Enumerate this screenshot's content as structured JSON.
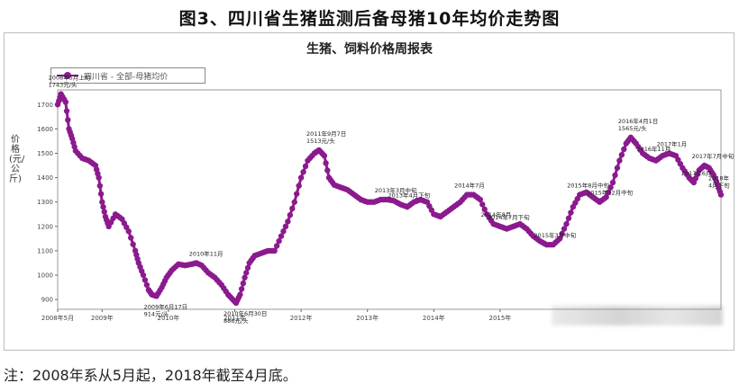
{
  "figure_title": "图3、四川省生猪监测后备母猪10年均价走势图",
  "note": "注：2008年系从5月起，2018年截至4月底。",
  "chart_data": {
    "type": "line",
    "title": "生猪、饲料价格周报表",
    "ylabel": "价格(元/公斤)",
    "xlabel": "",
    "series_name": "四川省 - 全部-母猪均价",
    "series_color": "#8b1a8e",
    "grid": false,
    "legend_position": "top-left",
    "ylim": [
      860,
      1760
    ],
    "yticks": [
      900,
      1000,
      1100,
      1200,
      1300,
      1400,
      1500,
      1600,
      1700
    ],
    "xlim": [
      2008.33,
      2018.33
    ],
    "xticks": [
      {
        "x": 2008.33,
        "label": "2008年5月"
      },
      {
        "x": 2009.0,
        "label": "2009年"
      },
      {
        "x": 2010.0,
        "label": "2010年"
      },
      {
        "x": 2011.0,
        "label": "2011年"
      },
      {
        "x": 2012.0,
        "label": "2012年"
      },
      {
        "x": 2013.0,
        "label": "2013年"
      },
      {
        "x": 2014.0,
        "label": "2014年"
      },
      {
        "x": 2015.0,
        "label": "2015年"
      }
    ],
    "points": [
      [
        2008.33,
        1700
      ],
      [
        2008.38,
        1743
      ],
      [
        2008.45,
        1710
      ],
      [
        2008.5,
        1600
      ],
      [
        2008.55,
        1560
      ],
      [
        2008.6,
        1510
      ],
      [
        2008.7,
        1480
      ],
      [
        2008.8,
        1470
      ],
      [
        2008.9,
        1450
      ],
      [
        2008.95,
        1400
      ],
      [
        2009.0,
        1300
      ],
      [
        2009.05,
        1240
      ],
      [
        2009.1,
        1200
      ],
      [
        2009.2,
        1250
      ],
      [
        2009.3,
        1230
      ],
      [
        2009.4,
        1180
      ],
      [
        2009.5,
        1100
      ],
      [
        2009.55,
        1050
      ],
      [
        2009.62,
        1000
      ],
      [
        2009.7,
        940
      ],
      [
        2009.75,
        920
      ],
      [
        2009.82,
        914
      ],
      [
        2009.9,
        950
      ],
      [
        2009.97,
        990
      ],
      [
        2010.05,
        1020
      ],
      [
        2010.15,
        1045
      ],
      [
        2010.25,
        1040
      ],
      [
        2010.35,
        1045
      ],
      [
        2010.42,
        1050
      ],
      [
        2010.5,
        1040
      ],
      [
        2010.6,
        1010
      ],
      [
        2010.7,
        990
      ],
      [
        2010.8,
        960
      ],
      [
        2010.9,
        920
      ],
      [
        2010.97,
        900
      ],
      [
        2011.02,
        886
      ],
      [
        2011.08,
        920
      ],
      [
        2011.15,
        990
      ],
      [
        2011.22,
        1050
      ],
      [
        2011.3,
        1080
      ],
      [
        2011.4,
        1090
      ],
      [
        2011.5,
        1100
      ],
      [
        2011.6,
        1100
      ],
      [
        2011.7,
        1160
      ],
      [
        2011.8,
        1220
      ],
      [
        2011.9,
        1300
      ],
      [
        2012.0,
        1400
      ],
      [
        2012.1,
        1470
      ],
      [
        2012.2,
        1500
      ],
      [
        2012.27,
        1513
      ],
      [
        2012.35,
        1490
      ],
      [
        2012.42,
        1400
      ],
      [
        2012.5,
        1370
      ],
      [
        2012.6,
        1360
      ],
      [
        2012.7,
        1350
      ],
      [
        2012.8,
        1330
      ],
      [
        2012.9,
        1310
      ],
      [
        2013.0,
        1300
      ],
      [
        2013.1,
        1300
      ],
      [
        2013.2,
        1310
      ],
      [
        2013.3,
        1310
      ],
      [
        2013.4,
        1305
      ],
      [
        2013.5,
        1290
      ],
      [
        2013.6,
        1280
      ],
      [
        2013.7,
        1300
      ],
      [
        2013.8,
        1310
      ],
      [
        2013.9,
        1300
      ],
      [
        2014.0,
        1250
      ],
      [
        2014.1,
        1240
      ],
      [
        2014.2,
        1260
      ],
      [
        2014.3,
        1280
      ],
      [
        2014.4,
        1300
      ],
      [
        2014.5,
        1330
      ],
      [
        2014.6,
        1330
      ],
      [
        2014.7,
        1310
      ],
      [
        2014.8,
        1250
      ],
      [
        2014.9,
        1210
      ],
      [
        2015.0,
        1200
      ],
      [
        2015.1,
        1190
      ],
      [
        2015.2,
        1200
      ],
      [
        2015.3,
        1210
      ],
      [
        2015.4,
        1190
      ],
      [
        2015.5,
        1160
      ],
      [
        2015.6,
        1140
      ],
      [
        2015.7,
        1125
      ],
      [
        2015.8,
        1125
      ],
      [
        2015.9,
        1150
      ],
      [
        2016.0,
        1210
      ],
      [
        2016.1,
        1280
      ],
      [
        2016.2,
        1330
      ],
      [
        2016.3,
        1340
      ],
      [
        2016.4,
        1320
      ],
      [
        2016.5,
        1300
      ],
      [
        2016.6,
        1320
      ],
      [
        2016.7,
        1380
      ],
      [
        2016.8,
        1470
      ],
      [
        2016.9,
        1540
      ],
      [
        2016.97,
        1565
      ],
      [
        2017.05,
        1540
      ],
      [
        2017.15,
        1500
      ],
      [
        2017.25,
        1480
      ],
      [
        2017.35,
        1470
      ],
      [
        2017.45,
        1490
      ],
      [
        2017.55,
        1500
      ],
      [
        2017.65,
        1490
      ],
      [
        2017.75,
        1440
      ],
      [
        2017.85,
        1400
      ],
      [
        2017.92,
        1380
      ],
      [
        2018.0,
        1430
      ],
      [
        2018.08,
        1450
      ],
      [
        2018.15,
        1440
      ],
      [
        2018.22,
        1410
      ],
      [
        2018.28,
        1370
      ],
      [
        2018.33,
        1330
      ]
    ],
    "annotations": [
      {
        "x": 2008.38,
        "y": 1743,
        "lines": [
          "2008年5月上旬",
          "1743元/头"
        ]
      },
      {
        "x": 2009.82,
        "y": 914,
        "lines": [
          "2009年6月17日",
          "914元/头"
        ]
      },
      {
        "x": 2010.5,
        "y": 1050,
        "lines": [
          "2010年11月"
        ]
      },
      {
        "x": 2011.02,
        "y": 886,
        "lines": [
          "2010年6月30日",
          "886元/头"
        ]
      },
      {
        "x": 2012.27,
        "y": 1513,
        "lines": [
          "2011年9月7日",
          "1513元/头"
        ]
      },
      {
        "x": 2013.3,
        "y": 1310,
        "lines": [
          "2013年3月中旬"
        ]
      },
      {
        "x": 2013.5,
        "y": 1290,
        "lines": [
          "2013年4月下旬"
        ]
      },
      {
        "x": 2014.5,
        "y": 1330,
        "lines": [
          "2014年7月"
        ]
      },
      {
        "x": 2014.9,
        "y": 1210,
        "lines": [
          "2014年8月"
        ]
      },
      {
        "x": 2015.0,
        "y": 1200,
        "lines": [
          "2014年7月下旬"
        ]
      },
      {
        "x": 2015.7,
        "y": 1125,
        "lines": [
          "2015年3月中旬"
        ]
      },
      {
        "x": 2016.2,
        "y": 1330,
        "lines": [
          "2015年8月中旬"
        ]
      },
      {
        "x": 2016.5,
        "y": 1300,
        "lines": [
          "2015年12月中旬"
        ]
      },
      {
        "x": 2016.97,
        "y": 1565,
        "lines": [
          "2016年4月1日",
          "1565元/头"
        ]
      },
      {
        "x": 2017.25,
        "y": 1480,
        "lines": [
          "2016年11月"
        ]
      },
      {
        "x": 2017.55,
        "y": 1500,
        "lines": [
          "2017年1月"
        ]
      },
      {
        "x": 2017.92,
        "y": 1380,
        "lines": [
          "2017年6月"
        ]
      },
      {
        "x": 2018.08,
        "y": 1450,
        "lines": [
          "2017年7月中旬"
        ]
      },
      {
        "x": 2018.33,
        "y": 1330,
        "lines": [
          "2018年",
          "4月下旬"
        ]
      }
    ]
  }
}
